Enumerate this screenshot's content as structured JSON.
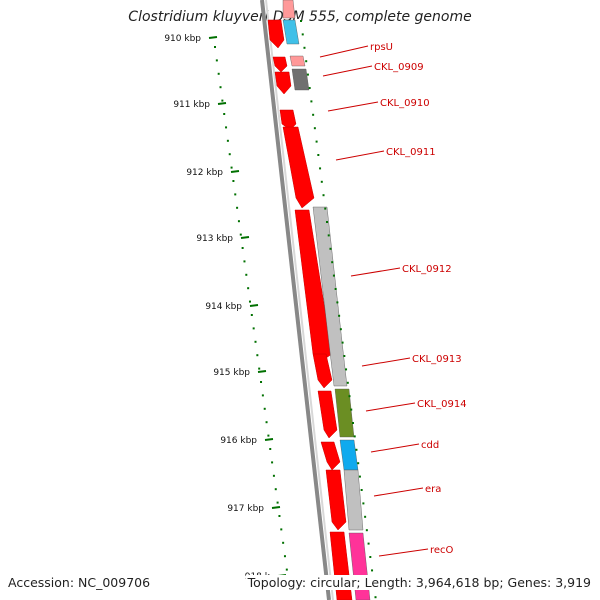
{
  "title": "Clostridium kluyveri DSM 555, complete genome",
  "footer": {
    "accession": "Accession: NC_009706",
    "summary": "Topology: circular; Length: 3,964,618 bp; Genes: 3,919"
  },
  "ticks": [
    {
      "label": "910 kbp"
    },
    {
      "label": "911 kbp"
    },
    {
      "label": "912 kbp"
    },
    {
      "label": "913 kbp"
    },
    {
      "label": "914 kbp"
    },
    {
      "label": "915 kbp"
    },
    {
      "label": "916 kbp"
    },
    {
      "label": "917 kbp"
    },
    {
      "label": "918 k"
    }
  ],
  "gene_labels": [
    {
      "name": "rpsU"
    },
    {
      "name": "CKL_0909"
    },
    {
      "name": "CKL_0910"
    },
    {
      "name": "CKL_0911"
    },
    {
      "name": "CKL_0912"
    },
    {
      "name": "CKL_0913"
    },
    {
      "name": "CKL_0914"
    },
    {
      "name": "cdd"
    },
    {
      "name": "era"
    },
    {
      "name": "recO"
    }
  ],
  "colors": {
    "gene_red": "#ff0000",
    "rpsU": "#40c0e8",
    "CKL_0909": "#ff9999",
    "CKL_0910": "#707070",
    "CKL_0912": "#c0c0c0",
    "CKL_0913": "#c0c0c0",
    "CKL_0914": "#6b8e23",
    "cdd": "#10aaee",
    "era": "#c0c0c0",
    "recO": "#ff3399",
    "label": "#cc0000",
    "tick": "#007000"
  }
}
